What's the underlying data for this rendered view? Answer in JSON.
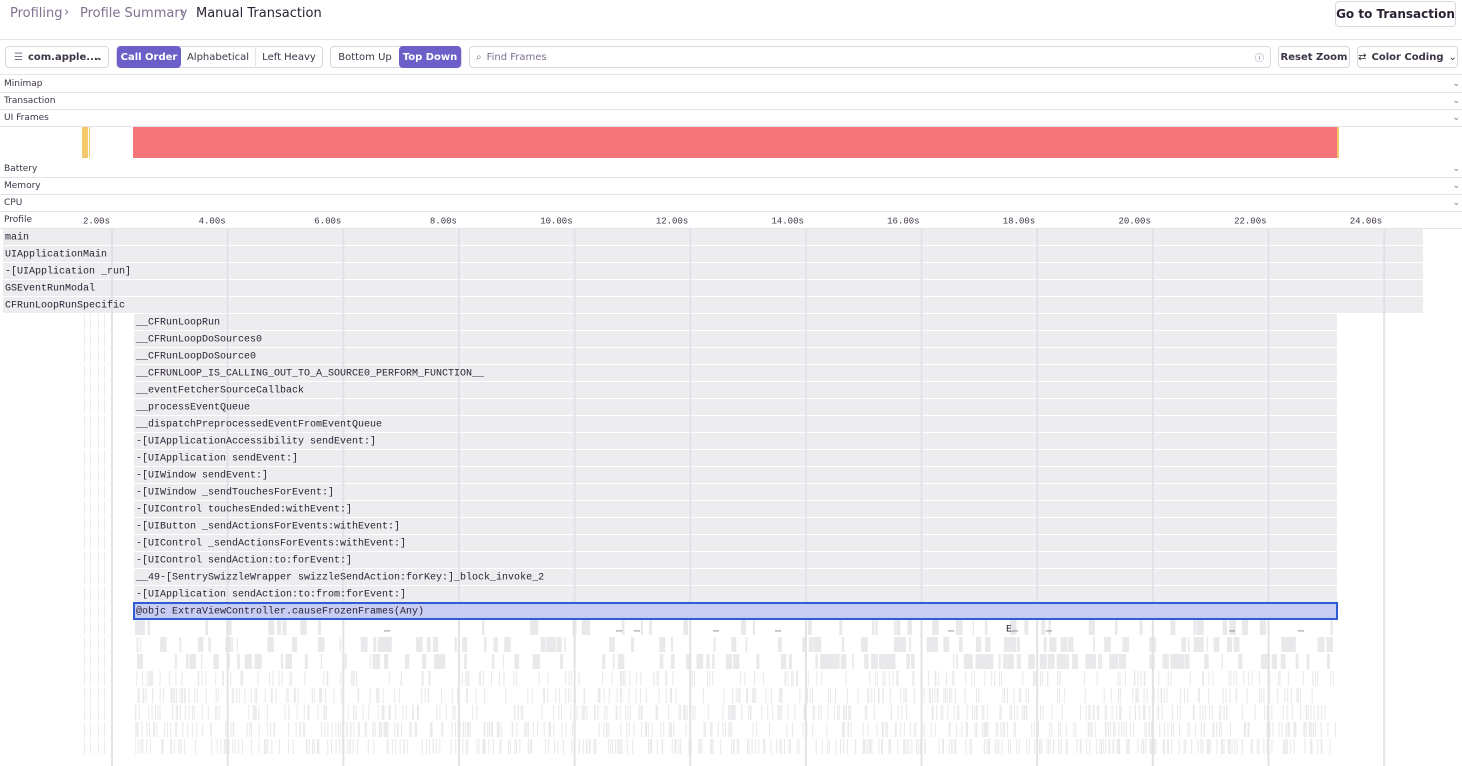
{
  "breadcrumbs": [
    "Profiling",
    "Profile Summary",
    "Manual Transaction"
  ],
  "go_button": "Go to Transaction",
  "thread_select": "com.apple....",
  "sort_buttons": [
    "Call Order",
    "Alphabetical",
    "Left Heavy"
  ],
  "view_buttons": [
    "Bottom Up",
    "Top Down"
  ],
  "search_placeholder": "Find Frames",
  "reset_zoom": "Reset Zoom",
  "color_coding": "Color Coding",
  "sections": [
    "Minimap",
    "Transaction",
    "UI Frames",
    "Battery",
    "Memory",
    "CPU",
    "Profile"
  ],
  "time_ticks": [
    "2.00s",
    "4.00s",
    "6.00s",
    "8.00s",
    "10.00s",
    "12.00s",
    "14.00s",
    "16.00s",
    "18.00s",
    "20.00s",
    "22.00s",
    "24.00s"
  ],
  "frames": [
    "main",
    "UIApplicationMain",
    "-[UIApplication _run]",
    "GSEventRunModal",
    "CFRunLoopRunSpecific",
    "__CFRunLoopRun",
    "__CFRunLoopDoSources0",
    "__CFRunLoopDoSource0",
    "__CFRUNLOOP_IS_CALLING_OUT_TO_A_SOURCE0_PERFORM_FUNCTION__",
    "__eventFetcherSourceCallback",
    "__processEventQueue",
    "__dispatchPreprocessedEventFromEventQueue",
    "-[UIApplicationAccessibility sendEvent:]",
    "-[UIApplication sendEvent:]",
    "-[UIWindow sendEvent:]",
    "-[UIWindow _sendTouchesForEvent:]",
    "-[UIControl touchesEnded:withEvent:]",
    "-[UIButton _sendActionsForEvents:withEvent:]",
    "-[UIControl _sendActionsForEvents:withEvent:]",
    "-[UIControl sendAction:to:forEvent:]",
    "__49-[SentrySwizzleWrapper swizzleSendAction:forKey:]_block_invoke_2",
    "-[UIApplication sendAction:to:from:forEvent:]",
    "@objc ExtraViewController.causeFrozenFrames(Any)"
  ],
  "small_frame_labels": [
    "…",
    "…",
    "…",
    "…",
    "…",
    "…",
    "E…",
    "…",
    "…",
    "…"
  ]
}
